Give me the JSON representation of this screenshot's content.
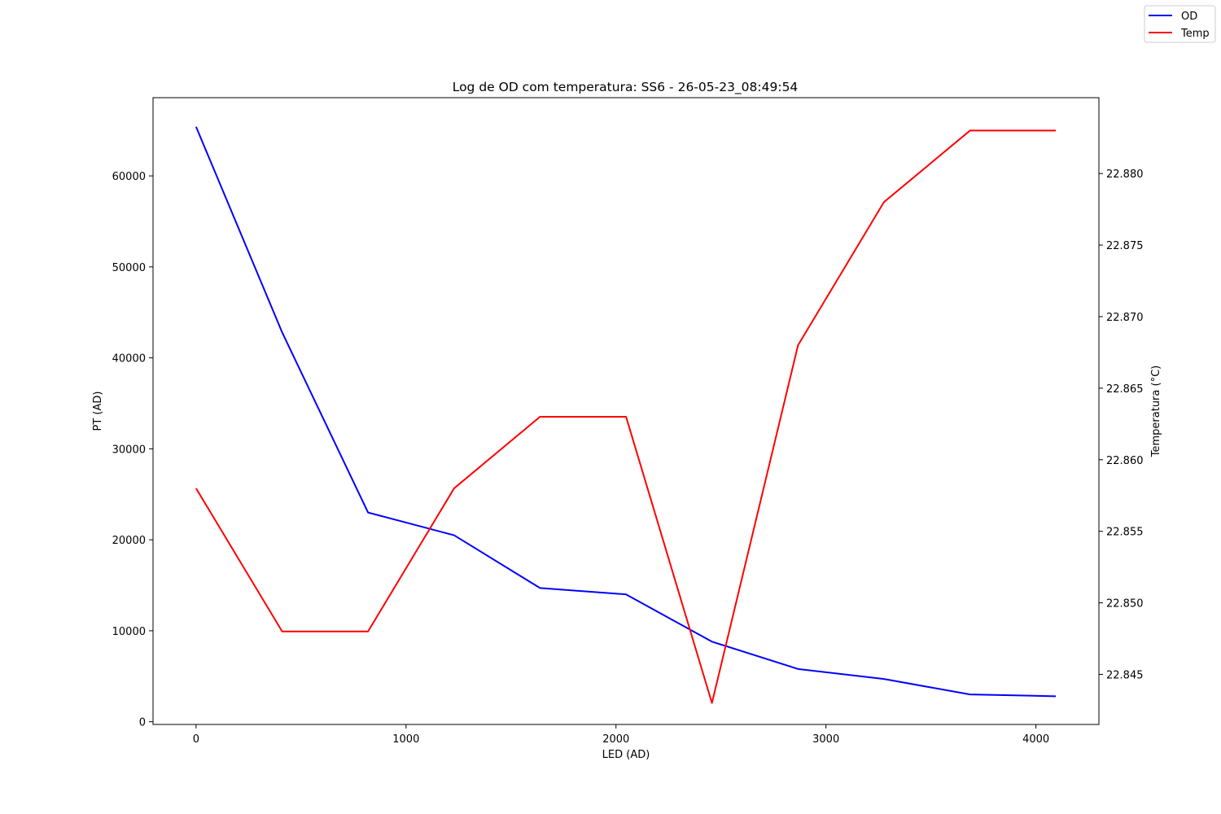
{
  "chart_data": {
    "type": "line",
    "title": "Log de OD com temperatura: SS6 - 26-05-23_08:49:54",
    "xlabel": "LED (AD)",
    "ylabel": "PT (AD)",
    "y2label": "Temperatura (°C)",
    "xlim": [
      -205,
      4300
    ],
    "ylim": [
      -300,
      68600
    ],
    "y2lim": [
      22.8415,
      22.8853
    ],
    "xticks": [
      0,
      1000,
      2000,
      3000,
      4000
    ],
    "yticks": [
      0,
      10000,
      20000,
      30000,
      40000,
      50000,
      60000
    ],
    "y2ticks": [
      22.845,
      22.85,
      22.855,
      22.86,
      22.865,
      22.87,
      22.875,
      22.88
    ],
    "xtick_labels": [
      "0",
      "1000",
      "2000",
      "3000",
      "4000"
    ],
    "ytick_labels": [
      "0",
      "10000",
      "20000",
      "30000",
      "40000",
      "50000",
      "60000"
    ],
    "y2tick_labels": [
      "22.845",
      "22.850",
      "22.855",
      "22.860",
      "22.865",
      "22.870",
      "22.875",
      "22.880"
    ],
    "x": [
      0,
      410,
      819,
      1229,
      1638,
      2048,
      2457,
      2867,
      3276,
      3686,
      4095
    ],
    "series": [
      {
        "name": "OD",
        "axis": "left",
        "color": "#0000ff",
        "values": [
          65400,
          42800,
          23000,
          20500,
          14700,
          14000,
          8800,
          5800,
          4700,
          3000,
          2800
        ]
      },
      {
        "name": "Temp",
        "axis": "right",
        "color": "#ff0000",
        "values": [
          22.858,
          22.848,
          22.848,
          22.858,
          22.863,
          22.863,
          22.843,
          22.868,
          22.878,
          22.883,
          22.883
        ]
      }
    ],
    "grid": false,
    "legend_position": "top-right"
  }
}
